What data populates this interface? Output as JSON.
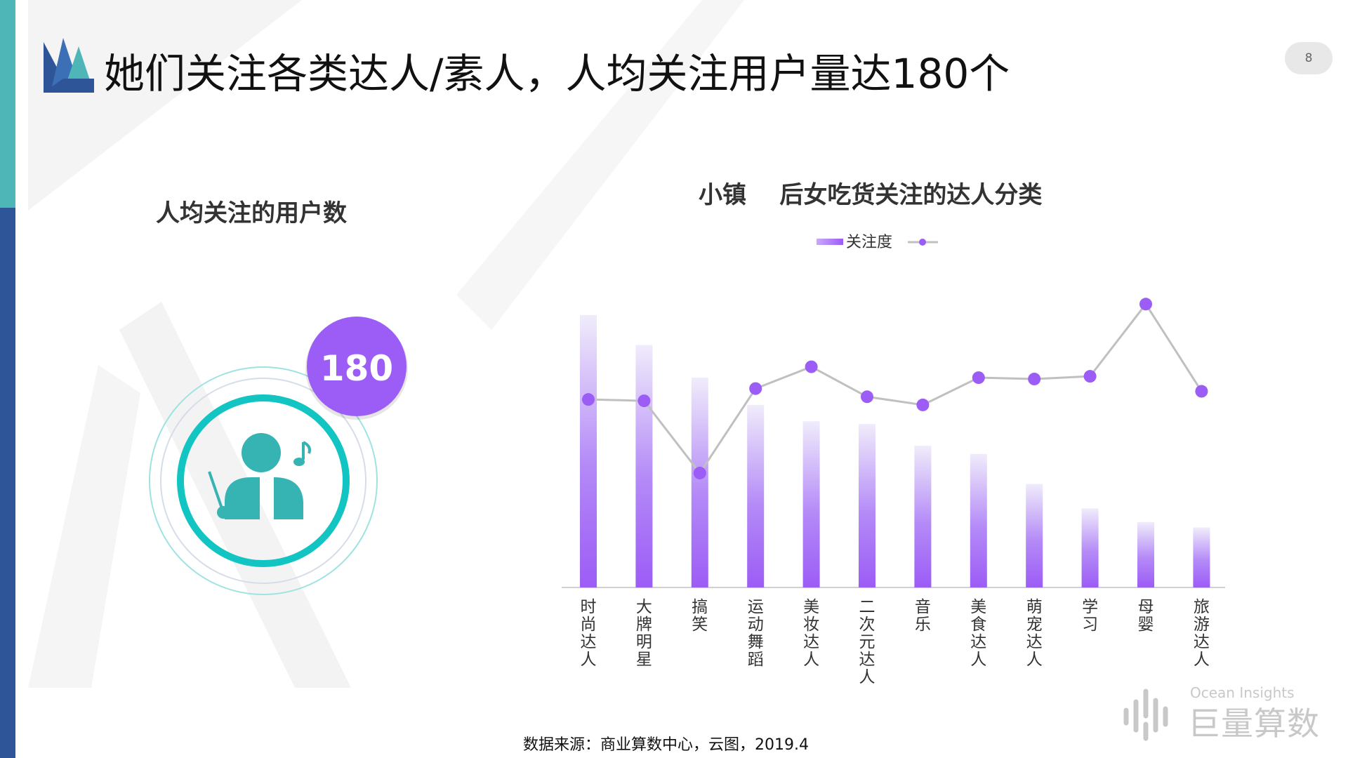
{
  "page": {
    "title": "她们关注各类达人/素人，人均关注用户量达180个",
    "page_number": "8",
    "source": "数据来源：商业算数中心，云图，2019.4",
    "brand_en": "Ocean Insights",
    "brand_cn": "巨量算数"
  },
  "left_panel": {
    "title": "人均关注的用户数",
    "badge_value": "180",
    "icon": "conductor-music-icon"
  },
  "colors": {
    "bar_top": "#f0ecfb",
    "bar_bottom": "#9c5cf6",
    "marker": "#9c5cf6",
    "line": "#c0c0c0",
    "teal": "#1bc6c4",
    "badge": "#9c5cf6"
  },
  "chart_data": {
    "type": "bar",
    "title": "小镇    后女吃货关注的达人分类",
    "legend": {
      "bar_label": "关注度",
      "line_label": "",
      "position": "top"
    },
    "categories": [
      "时尚达人",
      "大牌明星",
      "搞笑",
      "运动舞蹈",
      "美妆达人",
      "二次元达人",
      "音乐",
      "美食达人",
      "萌宠达人",
      "学习",
      "母婴",
      "旅游达人"
    ],
    "bar_values": [
      100,
      89,
      77,
      67,
      61,
      60,
      52,
      49,
      38,
      29,
      24,
      22
    ],
    "line_values": [
      69,
      68.5,
      42,
      73,
      81,
      70,
      67,
      77,
      76.5,
      77.5,
      104,
      72
    ],
    "ylim": [
      0,
      110
    ],
    "grid": false
  }
}
